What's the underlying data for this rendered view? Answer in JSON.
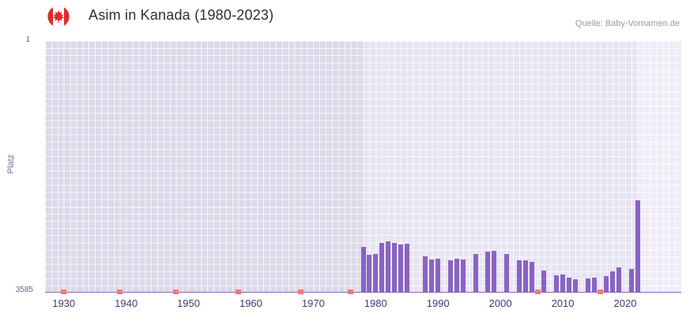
{
  "chart_data": {
    "type": "bar",
    "title": "Asim in Kanada (1980-2023)",
    "source": "Quelle: Baby-Vornamen.de",
    "xlabel": "",
    "ylabel": "Platz",
    "y_inverted": true,
    "y_tick_top": "1",
    "y_tick_bottom": "3585",
    "ylim": [
      1,
      3585
    ],
    "xlim": [
      1927,
      2029
    ],
    "x_ticks": [
      1930,
      1940,
      1950,
      1960,
      1970,
      1980,
      1990,
      2000,
      2010,
      2020
    ],
    "grid": true,
    "legend": "none",
    "bar_color": "#8a63c2",
    "no_rank_color": "#ee7a7a",
    "regions": [
      {
        "from": 1927,
        "to": 1978,
        "color": "#dcd9ea"
      },
      {
        "from": 1978,
        "to": 2022,
        "color": "#e7e4f2"
      },
      {
        "from": 2022,
        "to": 2029,
        "color": "#efecf8"
      }
    ],
    "bars": [
      {
        "year": 1978,
        "rank": 2950
      },
      {
        "year": 1979,
        "rank": 3060
      },
      {
        "year": 1980,
        "rank": 3050
      },
      {
        "year": 1981,
        "rank": 2890
      },
      {
        "year": 1982,
        "rank": 2870
      },
      {
        "year": 1983,
        "rank": 2890
      },
      {
        "year": 1984,
        "rank": 2910
      },
      {
        "year": 1985,
        "rank": 2900
      },
      {
        "year": 1988,
        "rank": 3080
      },
      {
        "year": 1989,
        "rank": 3120
      },
      {
        "year": 1990,
        "rank": 3110
      },
      {
        "year": 1992,
        "rank": 3130
      },
      {
        "year": 1993,
        "rank": 3110
      },
      {
        "year": 1994,
        "rank": 3120
      },
      {
        "year": 1996,
        "rank": 3040
      },
      {
        "year": 1998,
        "rank": 3010
      },
      {
        "year": 1999,
        "rank": 3000
      },
      {
        "year": 2001,
        "rank": 3050
      },
      {
        "year": 2003,
        "rank": 3130
      },
      {
        "year": 2004,
        "rank": 3140
      },
      {
        "year": 2005,
        "rank": 3160
      },
      {
        "year": 2007,
        "rank": 3280
      },
      {
        "year": 2009,
        "rank": 3350
      },
      {
        "year": 2010,
        "rank": 3340
      },
      {
        "year": 2011,
        "rank": 3380
      },
      {
        "year": 2012,
        "rank": 3400
      },
      {
        "year": 2014,
        "rank": 3390
      },
      {
        "year": 2015,
        "rank": 3380
      },
      {
        "year": 2017,
        "rank": 3360
      },
      {
        "year": 2018,
        "rank": 3290
      },
      {
        "year": 2019,
        "rank": 3240
      },
      {
        "year": 2021,
        "rank": 3260
      },
      {
        "year": 2022,
        "rank": 2280
      }
    ],
    "no_rank_years": [
      1930,
      1939,
      1948,
      1958,
      1968,
      1976,
      2006,
      2016
    ]
  }
}
